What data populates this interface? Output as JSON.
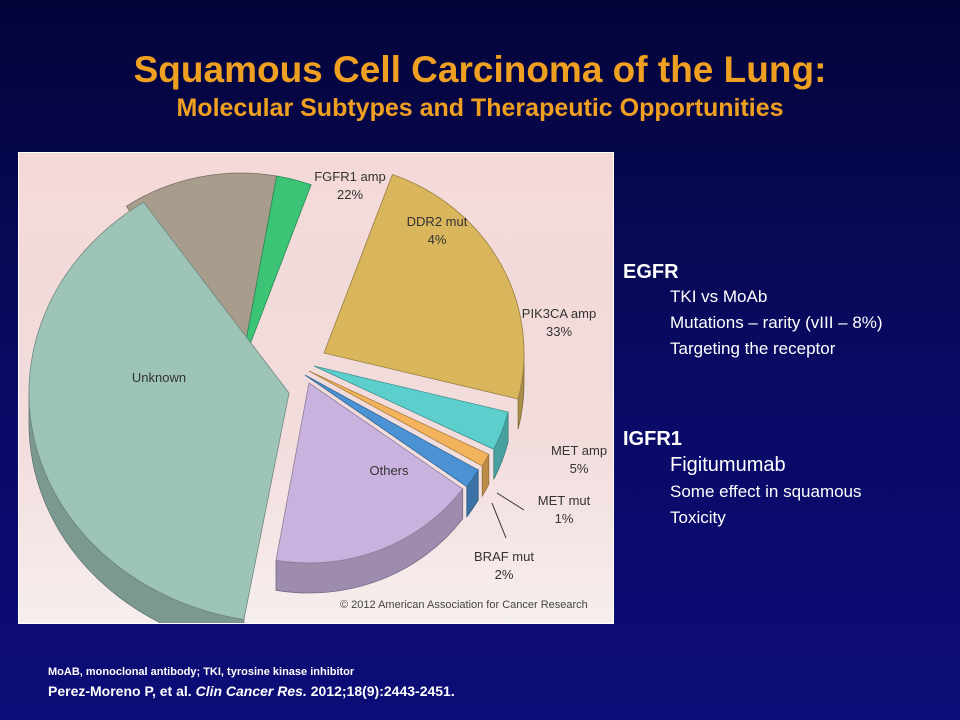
{
  "slide": {
    "title": "Squamous Cell Carcinoma of the Lung:",
    "subtitle": "Molecular Subtypes and Therapeutic Opportunities"
  },
  "chart_data": {
    "type": "pie",
    "title": "",
    "copyright": "© 2012 American Association for Cancer Research",
    "slices": [
      {
        "name": "FGFR1 amp",
        "label": "22%",
        "value": 22,
        "color": "#a89c8c"
      },
      {
        "name": "DDR2 mut",
        "label": "4%",
        "value": 4,
        "color": "#3cc476"
      },
      {
        "name": "PIK3CA amp",
        "label": "33%",
        "value": 33,
        "color": "#d9b55c"
      },
      {
        "name": "MET amp",
        "label": "5%",
        "value": 5,
        "color": "#5ccfcc"
      },
      {
        "name": "MET mut",
        "label": "1%",
        "value": 1,
        "color": "#f2b35c"
      },
      {
        "name": "BRAF mut",
        "label": "2%",
        "value": 2,
        "color": "#4a92d4"
      },
      {
        "name": "Others",
        "label": "",
        "value": null,
        "color": "#c9b3de"
      },
      {
        "name": "Unknown",
        "label": "",
        "value": null,
        "color": "#9ec4b8"
      }
    ]
  },
  "sidebar": {
    "egfr": {
      "heading": "EGFR",
      "items": [
        "TKI vs MoAb",
        "Mutations – rarity (vIII – 8%)",
        "Targeting the receptor"
      ]
    },
    "igfr1": {
      "heading": "IGFR1",
      "items": [
        "Figitumumab",
        "Some effect in squamous",
        "Toxicity"
      ]
    }
  },
  "footer": {
    "abbreviations": "MoAB, monoclonal antibody; TKI, tyrosine kinase inhibitor",
    "ref_authors": "Perez-Moreno P, et al. ",
    "ref_journal": "Clin Cancer Res.",
    "ref_details": " 2012;18(9):2443-2451."
  }
}
